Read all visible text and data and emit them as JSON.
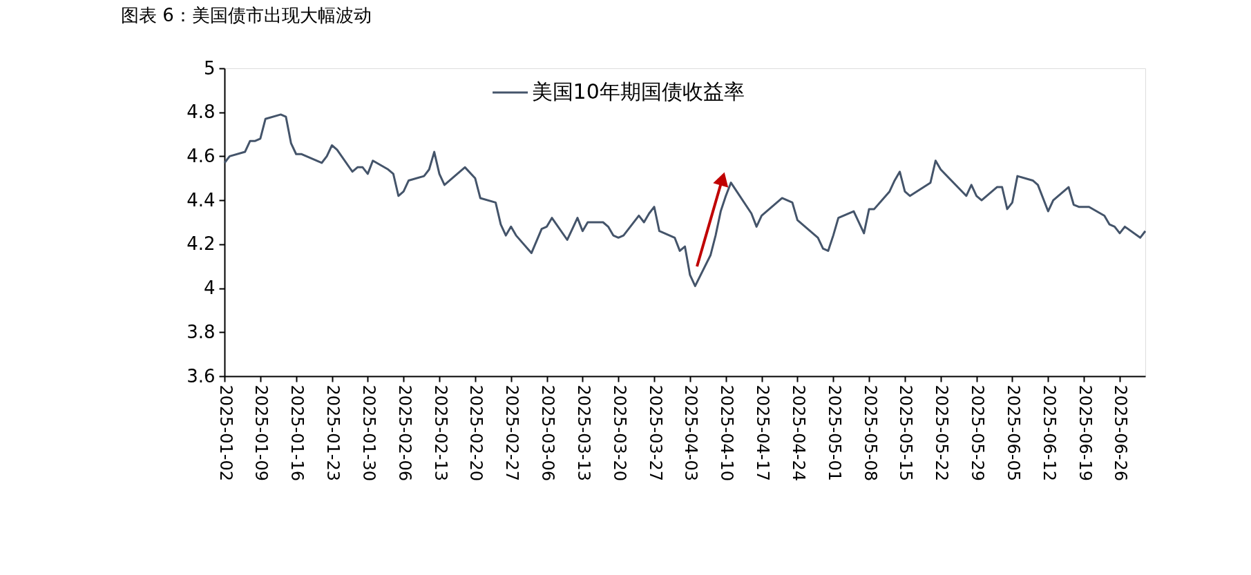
{
  "chart_data": {
    "type": "line",
    "title": "图表 6：美国债市出现大幅波动",
    "x": [
      "2025-01-02",
      "2025-01-03",
      "2025-01-06",
      "2025-01-07",
      "2025-01-08",
      "2025-01-09",
      "2025-01-10",
      "2025-01-13",
      "2025-01-14",
      "2025-01-15",
      "2025-01-16",
      "2025-01-17",
      "2025-01-21",
      "2025-01-22",
      "2025-01-23",
      "2025-01-24",
      "2025-01-27",
      "2025-01-28",
      "2025-01-29",
      "2025-01-30",
      "2025-01-31",
      "2025-02-03",
      "2025-02-04",
      "2025-02-05",
      "2025-02-06",
      "2025-02-07",
      "2025-02-10",
      "2025-02-11",
      "2025-02-12",
      "2025-02-13",
      "2025-02-14",
      "2025-02-18",
      "2025-02-20",
      "2025-02-21",
      "2025-02-24",
      "2025-02-25",
      "2025-02-26",
      "2025-02-27",
      "2025-02-28",
      "2025-03-03",
      "2025-03-05",
      "2025-03-06",
      "2025-03-07",
      "2025-03-10",
      "2025-03-11",
      "2025-03-12",
      "2025-03-13",
      "2025-03-14",
      "2025-03-17",
      "2025-03-18",
      "2025-03-19",
      "2025-03-20",
      "2025-03-21",
      "2025-03-24",
      "2025-03-25",
      "2025-03-26",
      "2025-03-27",
      "2025-03-28",
      "2025-03-31",
      "2025-04-01",
      "2025-04-02",
      "2025-04-03",
      "2025-04-04",
      "2025-04-07",
      "2025-04-08",
      "2025-04-09",
      "2025-04-10",
      "2025-04-11",
      "2025-04-15",
      "2025-04-16",
      "2025-04-17",
      "2025-04-21",
      "2025-04-22",
      "2025-04-23",
      "2025-04-24",
      "2025-04-28",
      "2025-04-29",
      "2025-04-30",
      "2025-05-01",
      "2025-05-02",
      "2025-05-05",
      "2025-05-07",
      "2025-05-08",
      "2025-05-09",
      "2025-05-12",
      "2025-05-13",
      "2025-05-14",
      "2025-05-15",
      "2025-05-16",
      "2025-05-20",
      "2025-05-21",
      "2025-05-22",
      "2025-05-27",
      "2025-05-28",
      "2025-05-29",
      "2025-05-30",
      "2025-06-02",
      "2025-06-03",
      "2025-06-04",
      "2025-06-05",
      "2025-06-06",
      "2025-06-09",
      "2025-06-10",
      "2025-06-12",
      "2025-06-13",
      "2025-06-16",
      "2025-06-17",
      "2025-06-18",
      "2025-06-20",
      "2025-06-23",
      "2025-06-24",
      "2025-06-25",
      "2025-06-26",
      "2025-06-27",
      "2025-06-30",
      "2025-07-01"
    ],
    "series": [
      {
        "name": "美国10年期国债收益率",
        "color": "#44546a",
        "values": [
          4.57,
          4.6,
          4.62,
          4.67,
          4.67,
          4.68,
          4.77,
          4.79,
          4.78,
          4.66,
          4.61,
          4.61,
          4.57,
          4.6,
          4.65,
          4.63,
          4.53,
          4.55,
          4.55,
          4.52,
          4.58,
          4.54,
          4.52,
          4.42,
          4.44,
          4.49,
          4.51,
          4.54,
          4.62,
          4.52,
          4.47,
          4.55,
          4.5,
          4.41,
          4.39,
          4.29,
          4.24,
          4.28,
          4.24,
          4.16,
          4.27,
          4.28,
          4.32,
          4.22,
          4.27,
          4.32,
          4.26,
          4.3,
          4.3,
          4.28,
          4.24,
          4.23,
          4.24,
          4.33,
          4.3,
          4.34,
          4.37,
          4.26,
          4.23,
          4.17,
          4.19,
          4.06,
          4.01,
          4.15,
          4.24,
          4.35,
          4.42,
          4.48,
          4.34,
          4.28,
          4.33,
          4.41,
          4.4,
          4.39,
          4.31,
          4.23,
          4.18,
          4.17,
          4.24,
          4.32,
          4.35,
          4.25,
          4.36,
          4.36,
          4.44,
          4.49,
          4.53,
          4.44,
          4.42,
          4.48,
          4.58,
          4.54,
          4.42,
          4.47,
          4.42,
          4.4,
          4.46,
          4.46,
          4.36,
          4.39,
          4.51,
          4.49,
          4.47,
          4.35,
          4.4,
          4.46,
          4.38,
          4.37,
          4.37,
          4.33,
          4.29,
          4.28,
          4.25,
          4.28,
          4.23,
          4.26
        ]
      }
    ],
    "xlim": [
      "2025-01-02",
      "2025-07-01"
    ],
    "xticks": [
      "2025-01-02",
      "2025-01-09",
      "2025-01-16",
      "2025-01-23",
      "2025-01-30",
      "2025-02-06",
      "2025-02-13",
      "2025-02-20",
      "2025-02-27",
      "2025-03-06",
      "2025-03-13",
      "2025-03-20",
      "2025-03-27",
      "2025-04-03",
      "2025-04-10",
      "2025-04-17",
      "2025-04-24",
      "2025-05-01",
      "2025-05-08",
      "2025-05-15",
      "2025-05-22",
      "2025-05-29",
      "2025-06-05",
      "2025-06-12",
      "2025-06-19",
      "2025-06-26"
    ],
    "ylim": [
      3.6,
      5
    ],
    "yticks": [
      3.6,
      3.8,
      4,
      4.2,
      4.4,
      4.6,
      4.8,
      5
    ],
    "grid": false,
    "legend": "top",
    "marker": "none",
    "line_style": "solid"
  }
}
